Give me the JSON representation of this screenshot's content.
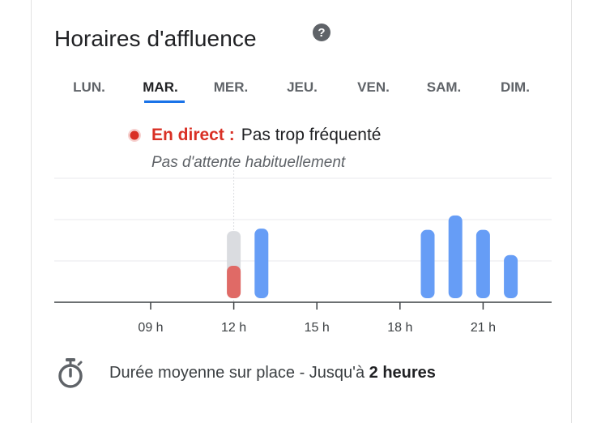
{
  "header": {
    "title": "Horaires d'affluence",
    "help_icon": "help-circle-icon"
  },
  "tabs": [
    {
      "label": "LUN.",
      "active": false
    },
    {
      "label": "MAR.",
      "active": true
    },
    {
      "label": "MER.",
      "active": false
    },
    {
      "label": "JEU.",
      "active": false
    },
    {
      "label": "VEN.",
      "active": false
    },
    {
      "label": "SAM.",
      "active": false
    },
    {
      "label": "DIM.",
      "active": false
    }
  ],
  "live": {
    "label": "En direct :",
    "status": "Pas trop fréquenté",
    "subtext": "Pas d'attente habituellement"
  },
  "colors": {
    "live_red": "#d93025",
    "live_bar": "#e06a66",
    "live_bar_bg": "#dadce0",
    "bar_blue": "#669df6",
    "accent_blue": "#1a73e8"
  },
  "chart_data": {
    "type": "bar",
    "x_ticks": [
      "09 h",
      "12 h",
      "15 h",
      "18 h",
      "21 h"
    ],
    "y_max": 100,
    "bars": [
      {
        "hour": 12,
        "value": 27,
        "live": true,
        "usual": 56
      },
      {
        "hour": 13,
        "value": 58
      },
      {
        "hour": 19,
        "value": 57
      },
      {
        "hour": 20,
        "value": 69
      },
      {
        "hour": 21,
        "value": 57
      },
      {
        "hour": 22,
        "value": 36
      }
    ]
  },
  "duration": {
    "icon": "stopwatch-icon",
    "text": "Durée moyenne sur place - Jusqu'à ",
    "bold": "2 heures"
  }
}
